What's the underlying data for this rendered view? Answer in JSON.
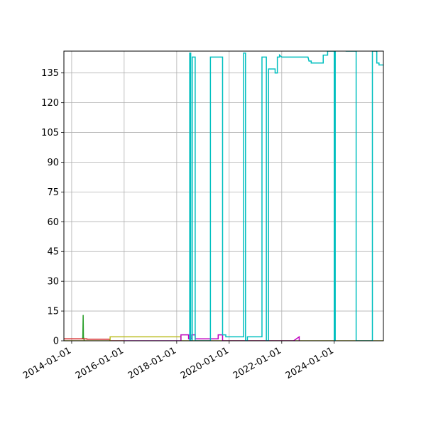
{
  "chart_data": {
    "type": "line",
    "title": "",
    "xlabel": "",
    "ylabel": "",
    "x_axis": {
      "kind": "date",
      "range": [
        "2013-09-15",
        "2025-11-15"
      ],
      "ticks": [
        "2014-01-01",
        "2016-01-01",
        "2018-01-01",
        "2020-01-01",
        "2022-01-01",
        "2024-01-01"
      ],
      "tick_labels": [
        "2014-01-01",
        "2016-01-01",
        "2018-01-01",
        "2020-01-01",
        "2022-01-01",
        "2024-01-01"
      ],
      "tick_label_rotation_deg": 30
    },
    "y_axis": {
      "range": [
        0,
        146
      ],
      "ticks": [
        0,
        15,
        30,
        45,
        60,
        75,
        90,
        105,
        120,
        135
      ],
      "tick_labels": [
        "0",
        "15",
        "30",
        "45",
        "60",
        "75",
        "90",
        "105",
        "120",
        "135"
      ]
    },
    "grid": true,
    "legend": "none",
    "series": [
      {
        "color": "#2ca02c",
        "x": [
          "2013-09-15",
          "2014-06-01",
          "2014-06-05",
          "2014-06-10",
          "2014-06-14",
          "2014-06-20",
          "2014-06-25",
          "2014-07-01"
        ],
        "y": [
          1,
          1,
          2,
          13,
          2,
          1,
          0,
          0
        ]
      },
      {
        "color": "#d62728",
        "x": [
          "2013-09-15",
          "2014-08-01",
          "2014-08-01",
          "2015-06-15",
          "2015-06-15",
          "2016-01-01"
        ],
        "y": [
          1,
          1,
          0.8,
          0.8,
          0,
          0
        ]
      },
      {
        "color": "#bcbd22",
        "x": [
          "2013-09-15",
          "2015-06-20",
          "2015-06-20",
          "2018-03-01",
          "2018-03-01",
          "2025-11-15"
        ],
        "y": [
          0,
          0,
          2,
          2,
          0,
          0
        ]
      },
      {
        "color": "#bf00bf",
        "x": [
          "2016-01-01",
          "2018-03-01",
          "2018-03-01",
          "2018-06-15",
          "2018-06-15",
          "2018-08-01",
          "2018-08-01",
          "2018-09-15",
          "2018-09-15",
          "2019-08-01",
          "2019-08-01",
          "2019-10-01",
          "2019-10-01",
          "2022-06-15",
          "2022-09-01",
          "2022-09-01"
        ],
        "y": [
          0,
          0,
          3,
          3,
          1,
          1,
          3,
          3,
          1,
          1,
          3,
          3,
          0,
          0,
          2,
          0
        ]
      },
      {
        "color": "#00bfbf",
        "x": [
          "2018-07-01",
          "2018-07-01",
          "2018-07-15",
          "2018-07-15",
          "2018-08-05",
          "2018-08-05",
          "2018-09-15",
          "2018-09-15",
          "2019-04-15",
          "2019-04-15",
          "2019-10-01",
          "2019-10-01",
          "2019-11-15",
          "2019-11-15",
          "2020-07-20",
          "2020-07-20",
          "2020-08-15",
          "2020-08-15",
          "2020-09-10",
          "2020-09-10",
          "2021-04-01",
          "2021-04-01",
          "2021-06-01",
          "2021-06-01",
          "2021-07-01",
          "2021-07-01",
          "2021-10-01",
          "2021-10-01",
          "2021-11-01",
          "2021-11-01",
          "2021-12-01",
          "2021-12-01",
          "2022-01-01",
          "2023-01-01",
          "2023-01-15",
          "2023-02-15",
          "2023-02-15",
          "2023-08-01",
          "2023-08-01",
          "2023-10-01",
          "2023-10-01",
          "2024-01-01",
          "2024-01-01",
          "2024-01-15",
          "2024-01-15",
          "2024-06-15",
          "2024-06-15",
          "2024-07-01",
          "2024-07-01",
          "2024-11-01",
          "2024-11-01",
          "2025-06-15",
          "2025-06-15",
          "2025-08-15",
          "2025-08-15",
          "2025-09-15",
          "2025-09-15",
          "2025-11-15"
        ],
        "y": [
          0,
          145,
          145,
          0,
          0,
          143,
          143,
          0,
          0,
          143,
          143,
          3,
          3,
          2,
          2,
          145,
          145,
          0,
          0,
          2,
          2,
          143,
          143,
          0,
          0,
          137,
          137,
          135,
          135,
          143,
          143,
          144,
          143,
          143,
          141,
          141,
          140,
          140,
          144,
          144,
          146,
          146,
          0,
          0,
          148,
          148,
          146,
          146,
          146,
          146,
          0,
          0,
          146,
          146,
          140,
          140,
          139,
          139
        ]
      }
    ]
  }
}
